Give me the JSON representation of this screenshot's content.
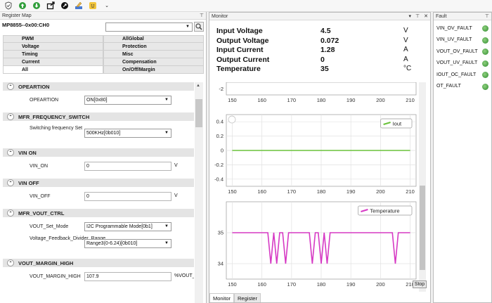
{
  "toolbar": {
    "icons": [
      "shield-icon",
      "upload-icon",
      "download-icon",
      "export-icon",
      "record-icon",
      "edit-icon",
      "smile-icon"
    ],
    "more": "⌄"
  },
  "register_map": {
    "title": "Register Map",
    "pin": "⊤",
    "device": "MP8855--0x00:CH0",
    "device_select": "",
    "tabs": [
      [
        "PWM",
        "AllGlobal"
      ],
      [
        "Voltage",
        "Protection"
      ],
      [
        "Timing",
        "Misc"
      ],
      [
        "Current",
        "Compensation"
      ],
      [
        "All",
        "On/Off/Margin"
      ]
    ],
    "selected_tab": "All",
    "sections": [
      {
        "name": "OPEARTION",
        "fields": [
          {
            "label": "OPEARTION",
            "kind": "select",
            "value": "ON[0x80]",
            "unit": ""
          }
        ]
      },
      {
        "name": "MFR_FREQUENCY_SWITCH",
        "fields": [
          {
            "label": "Switching frequency Set",
            "kind": "select",
            "value": "500KHz[0b010]",
            "unit": ""
          }
        ]
      },
      {
        "name": "VIN ON",
        "fields": [
          {
            "label": "VIN_ON",
            "kind": "input",
            "value": "0",
            "unit": "V"
          }
        ]
      },
      {
        "name": "VIN OFF",
        "fields": [
          {
            "label": "VIN_OFF",
            "kind": "input",
            "value": "0",
            "unit": "V"
          }
        ]
      },
      {
        "name": "MFR_VOUT_CTRL",
        "fields": [
          {
            "label": "VOUT_Set_Mode",
            "kind": "select",
            "value": "I2C Programmable Mode[0b1]",
            "unit": ""
          },
          {
            "label": "Voltage_Feedback_Divider_Range",
            "kind": "select",
            "value": "Range3(0-6.24)[0b010]",
            "unit": ""
          }
        ]
      },
      {
        "name": "VOUT_MARGIN_HIGH",
        "fields": [
          {
            "label": "VOUT_MARGIN_HIGH",
            "kind": "input",
            "value": "107.9",
            "unit": "%VOUT_"
          }
        ]
      }
    ]
  },
  "monitor": {
    "title": "Monitor",
    "controls": [
      "▾",
      "⊤",
      "✕"
    ],
    "readouts": [
      {
        "label": "Input Voltage",
        "value": "4.5",
        "unit": "V"
      },
      {
        "label": "Output Voltage",
        "value": "0.072",
        "unit": "V"
      },
      {
        "label": "Input Current",
        "value": "1.28",
        "unit": "A"
      },
      {
        "label": "Output Current",
        "value": "0",
        "unit": "A"
      },
      {
        "label": "Temperature",
        "value": "35",
        "unit": "°C"
      }
    ],
    "stop_label": "Stop",
    "tabs": [
      "Monitor",
      "Register"
    ],
    "selected_tab": "Monitor"
  },
  "chart_data": [
    {
      "type": "line",
      "title": "",
      "series": [],
      "y_visible_ticks": [
        "-2"
      ],
      "x_ticks": [
        150,
        160,
        170,
        180,
        190,
        200,
        210
      ],
      "xlim": [
        148,
        212
      ]
    },
    {
      "type": "line",
      "title": "",
      "series": [
        {
          "name": "Iout",
          "color": "#6ac23a",
          "x": [
            150,
            210
          ],
          "y": [
            0,
            0
          ]
        }
      ],
      "ylim": [
        -0.5,
        0.5
      ],
      "y_ticks": [
        "0.4",
        "0.2",
        "0",
        "-0.2",
        "-0.4"
      ],
      "x_ticks": [
        150,
        160,
        170,
        180,
        190,
        200,
        210
      ],
      "xlim": [
        148,
        212
      ],
      "legend": "top-right",
      "grid": true
    },
    {
      "type": "line",
      "title": "",
      "series": [
        {
          "name": "Temperature",
          "color": "#d63ac4",
          "x": [
            150,
            162,
            163,
            164,
            165,
            166,
            167,
            168,
            169,
            176,
            177,
            178,
            179,
            180,
            181,
            182,
            183,
            184,
            185,
            204,
            205,
            206,
            210
          ],
          "y": [
            35,
            35,
            34,
            35,
            34,
            35,
            35,
            34,
            35,
            35,
            34,
            35,
            35,
            34,
            35,
            34,
            35,
            35,
            35,
            35,
            34,
            35,
            35
          ]
        }
      ],
      "ylim": [
        33.5,
        36
      ],
      "y_ticks": [
        "35",
        "34"
      ],
      "x_ticks": [
        150,
        160,
        170,
        180,
        190,
        200,
        210
      ],
      "xlim": [
        148,
        212
      ],
      "legend": "top-right",
      "grid": true
    }
  ],
  "fault": {
    "title": "Fault",
    "pin": "⊤",
    "items": [
      "VIN_OV_FAULT",
      "VIN_UV_FAULT",
      "VOUT_OV_FAULT",
      "VOUT_UV_FAULT",
      "IOUT_OC_FAULT",
      "OT_FAULT"
    ]
  }
}
